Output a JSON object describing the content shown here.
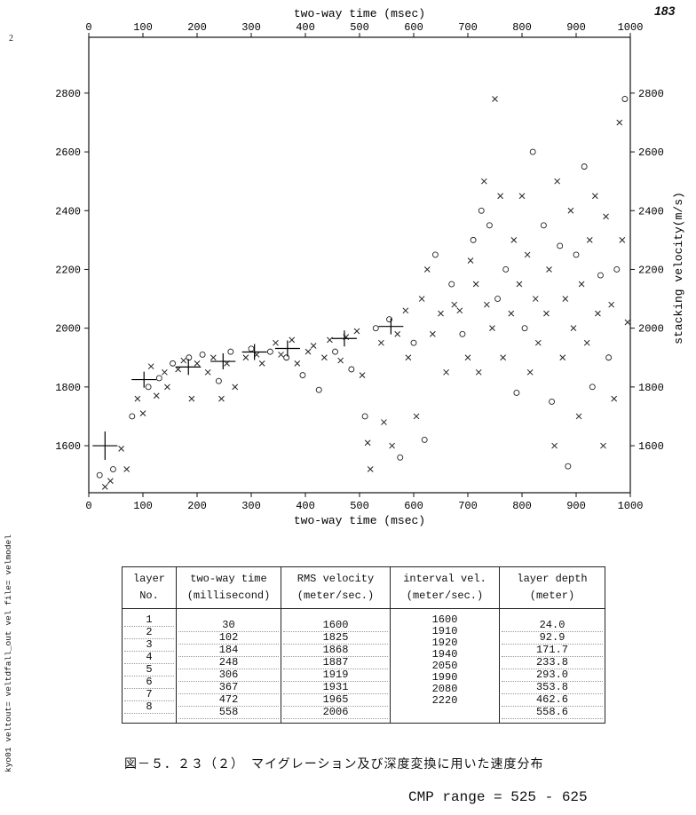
{
  "page_number": "183",
  "margin_mark": "2",
  "side_label": "kyo01 veltout= veltdfall_out vel file= velmodel",
  "caption": "図－５．２３（２）　マイグレーション及び深度変換に用いた速度分布",
  "cmp_range": "CMP range = 525 - 625",
  "chart_data": {
    "type": "scatter",
    "title": "",
    "xlabel": "two-way time (msec)",
    "ylabel": "stacking velocity(m/s)",
    "xlim": [
      0,
      1000
    ],
    "ylim": [
      1440,
      2990
    ],
    "x_ticks": [
      0,
      100,
      200,
      300,
      400,
      500,
      600,
      700,
      800,
      900,
      1000
    ],
    "y_ticks": [
      1600,
      1800,
      2000,
      2200,
      2400,
      2600,
      2800
    ],
    "grid": false,
    "velocity_model": [
      {
        "t": 30,
        "v": 1600
      },
      {
        "t": 102,
        "v": 1825
      },
      {
        "t": 184,
        "v": 1868
      },
      {
        "t": 248,
        "v": 1887
      },
      {
        "t": 306,
        "v": 1919
      },
      {
        "t": 367,
        "v": 1931
      },
      {
        "t": 472,
        "v": 1965
      },
      {
        "t": 558,
        "v": 2006
      }
    ],
    "semblance_picks": [
      {
        "t": 20,
        "v": 1500
      },
      {
        "t": 30,
        "v": 1460
      },
      {
        "t": 40,
        "v": 1480
      },
      {
        "t": 45,
        "v": 1520
      },
      {
        "t": 60,
        "v": 1590
      },
      {
        "t": 70,
        "v": 1520
      },
      {
        "t": 80,
        "v": 1700
      },
      {
        "t": 90,
        "v": 1760
      },
      {
        "t": 100,
        "v": 1710
      },
      {
        "t": 110,
        "v": 1800
      },
      {
        "t": 115,
        "v": 1870
      },
      {
        "t": 125,
        "v": 1770
      },
      {
        "t": 130,
        "v": 1830
      },
      {
        "t": 140,
        "v": 1850
      },
      {
        "t": 145,
        "v": 1800
      },
      {
        "t": 155,
        "v": 1880
      },
      {
        "t": 165,
        "v": 1860
      },
      {
        "t": 175,
        "v": 1890
      },
      {
        "t": 185,
        "v": 1900
      },
      {
        "t": 190,
        "v": 1760
      },
      {
        "t": 200,
        "v": 1880
      },
      {
        "t": 210,
        "v": 1910
      },
      {
        "t": 220,
        "v": 1850
      },
      {
        "t": 230,
        "v": 1900
      },
      {
        "t": 240,
        "v": 1820
      },
      {
        "t": 245,
        "v": 1760
      },
      {
        "t": 255,
        "v": 1880
      },
      {
        "t": 262,
        "v": 1920
      },
      {
        "t": 270,
        "v": 1800
      },
      {
        "t": 290,
        "v": 1900
      },
      {
        "t": 300,
        "v": 1930
      },
      {
        "t": 310,
        "v": 1910
      },
      {
        "t": 320,
        "v": 1880
      },
      {
        "t": 335,
        "v": 1920
      },
      {
        "t": 345,
        "v": 1950
      },
      {
        "t": 355,
        "v": 1910
      },
      {
        "t": 365,
        "v": 1900
      },
      {
        "t": 375,
        "v": 1960
      },
      {
        "t": 385,
        "v": 1880
      },
      {
        "t": 395,
        "v": 1840
      },
      {
        "t": 405,
        "v": 1920
      },
      {
        "t": 415,
        "v": 1940
      },
      {
        "t": 425,
        "v": 1790
      },
      {
        "t": 435,
        "v": 1900
      },
      {
        "t": 445,
        "v": 1960
      },
      {
        "t": 455,
        "v": 1920
      },
      {
        "t": 465,
        "v": 1890
      },
      {
        "t": 475,
        "v": 1970
      },
      {
        "t": 485,
        "v": 1860
      },
      {
        "t": 495,
        "v": 1990
      },
      {
        "t": 505,
        "v": 1840
      },
      {
        "t": 510,
        "v": 1700
      },
      {
        "t": 515,
        "v": 1610
      },
      {
        "t": 520,
        "v": 1520
      },
      {
        "t": 530,
        "v": 2000
      },
      {
        "t": 540,
        "v": 1950
      },
      {
        "t": 545,
        "v": 1680
      },
      {
        "t": 555,
        "v": 2030
      },
      {
        "t": 560,
        "v": 1600
      },
      {
        "t": 570,
        "v": 1980
      },
      {
        "t": 575,
        "v": 1560
      },
      {
        "t": 585,
        "v": 2060
      },
      {
        "t": 590,
        "v": 1900
      },
      {
        "t": 600,
        "v": 1950
      },
      {
        "t": 605,
        "v": 1700
      },
      {
        "t": 615,
        "v": 2100
      },
      {
        "t": 620,
        "v": 1620
      },
      {
        "t": 625,
        "v": 2200
      },
      {
        "t": 635,
        "v": 1980
      },
      {
        "t": 640,
        "v": 2250
      },
      {
        "t": 650,
        "v": 2050
      },
      {
        "t": 660,
        "v": 1850
      },
      {
        "t": 670,
        "v": 2150
      },
      {
        "t": 675,
        "v": 2080
      },
      {
        "t": 685,
        "v": 2060
      },
      {
        "t": 690,
        "v": 1980
      },
      {
        "t": 700,
        "v": 1900
      },
      {
        "t": 705,
        "v": 2230
      },
      {
        "t": 710,
        "v": 2300
      },
      {
        "t": 715,
        "v": 2150
      },
      {
        "t": 720,
        "v": 1850
      },
      {
        "t": 725,
        "v": 2400
      },
      {
        "t": 730,
        "v": 2500
      },
      {
        "t": 735,
        "v": 2080
      },
      {
        "t": 740,
        "v": 2350
      },
      {
        "t": 745,
        "v": 2000
      },
      {
        "t": 750,
        "v": 2780
      },
      {
        "t": 755,
        "v": 2100
      },
      {
        "t": 760,
        "v": 2450
      },
      {
        "t": 765,
        "v": 1900
      },
      {
        "t": 770,
        "v": 2200
      },
      {
        "t": 780,
        "v": 2050
      },
      {
        "t": 785,
        "v": 2300
      },
      {
        "t": 790,
        "v": 1780
      },
      {
        "t": 795,
        "v": 2150
      },
      {
        "t": 800,
        "v": 2450
      },
      {
        "t": 805,
        "v": 2000
      },
      {
        "t": 810,
        "v": 2250
      },
      {
        "t": 815,
        "v": 1850
      },
      {
        "t": 820,
        "v": 2600
      },
      {
        "t": 825,
        "v": 2100
      },
      {
        "t": 830,
        "v": 1950
      },
      {
        "t": 840,
        "v": 2350
      },
      {
        "t": 845,
        "v": 2050
      },
      {
        "t": 850,
        "v": 2200
      },
      {
        "t": 855,
        "v": 1750
      },
      {
        "t": 860,
        "v": 1600
      },
      {
        "t": 865,
        "v": 2500
      },
      {
        "t": 870,
        "v": 2280
      },
      {
        "t": 875,
        "v": 1900
      },
      {
        "t": 880,
        "v": 2100
      },
      {
        "t": 885,
        "v": 1530
      },
      {
        "t": 890,
        "v": 2400
      },
      {
        "t": 895,
        "v": 2000
      },
      {
        "t": 900,
        "v": 2250
      },
      {
        "t": 905,
        "v": 1700
      },
      {
        "t": 910,
        "v": 2150
      },
      {
        "t": 915,
        "v": 2550
      },
      {
        "t": 920,
        "v": 1950
      },
      {
        "t": 925,
        "v": 2300
      },
      {
        "t": 930,
        "v": 1800
      },
      {
        "t": 935,
        "v": 2450
      },
      {
        "t": 940,
        "v": 2050
      },
      {
        "t": 945,
        "v": 2180
      },
      {
        "t": 950,
        "v": 1600
      },
      {
        "t": 955,
        "v": 2380
      },
      {
        "t": 960,
        "v": 1900
      },
      {
        "t": 965,
        "v": 2080
      },
      {
        "t": 970,
        "v": 1760
      },
      {
        "t": 975,
        "v": 2200
      },
      {
        "t": 980,
        "v": 2700
      },
      {
        "t": 985,
        "v": 2300
      },
      {
        "t": 990,
        "v": 2780
      },
      {
        "t": 995,
        "v": 2020
      }
    ]
  },
  "table": {
    "headers": [
      [
        "layer",
        "No."
      ],
      [
        "two-way time",
        "(millisecond)"
      ],
      [
        "RMS velocity",
        "(meter/sec.)"
      ],
      [
        "interval vel.",
        "(meter/sec.)"
      ],
      [
        "layer depth",
        "(meter)"
      ]
    ],
    "columns": {
      "layer": [
        "1",
        "2",
        "3",
        "4",
        "5",
        "6",
        "7",
        "8"
      ],
      "time": [
        "30",
        "102",
        "184",
        "248",
        "306",
        "367",
        "472",
        "558"
      ],
      "rms": [
        "1600",
        "1825",
        "1868",
        "1887",
        "1919",
        "1931",
        "1965",
        "2006"
      ],
      "interval": [
        "1600",
        "1910",
        "1920",
        "1940",
        "2050",
        "1990",
        "2080",
        "2220"
      ],
      "depth": [
        "24.0",
        "92.9",
        "171.7",
        "233.8",
        "293.0",
        "353.8",
        "462.6",
        "558.6"
      ]
    }
  }
}
